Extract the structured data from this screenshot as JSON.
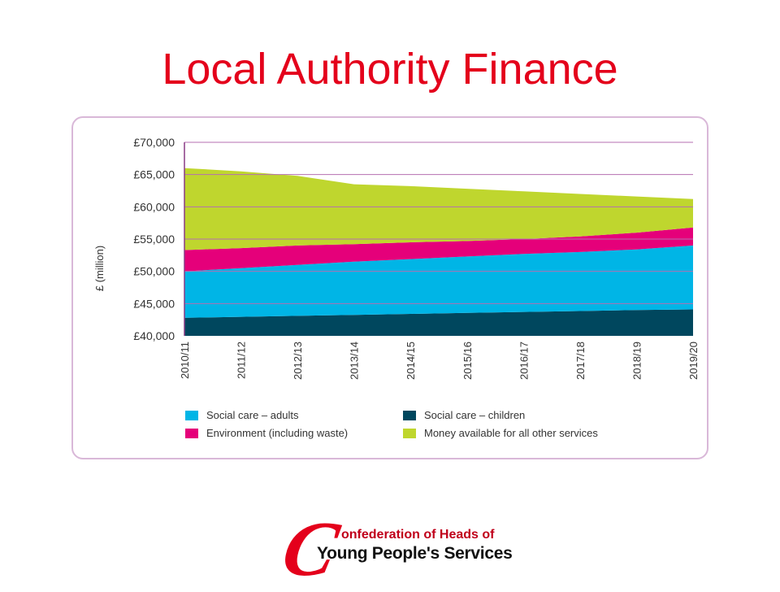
{
  "slide": {
    "title": "Local Authority Finance"
  },
  "logo": {
    "initial": "C",
    "line1": "onfederation of Heads of",
    "line2": "Young People's Services"
  },
  "colors": {
    "title": "#e4001b",
    "social_care_children": "#00475e",
    "social_care_adults": "#00b5e6",
    "environment": "#e5007a",
    "other_services": "#bfd62e",
    "gridline": "#b56fb1",
    "frame_border": "#d9b8d8"
  },
  "chart_data": {
    "type": "area",
    "stacked": true,
    "title": "",
    "xlabel": "",
    "ylabel": "£ (million)",
    "ylim": [
      40000,
      70000
    ],
    "yticks": [
      "£40,000",
      "£45,000",
      "£50,000",
      "£55,000",
      "£60,000",
      "£65,000",
      "£70,000"
    ],
    "ytick_values": [
      40000,
      45000,
      50000,
      55000,
      60000,
      65000,
      70000
    ],
    "categories": [
      "2010/11",
      "2011/12",
      "2012/13",
      "2013/14",
      "2014/15",
      "2015/16",
      "2016/17",
      "2017/18",
      "2018/19",
      "2019/20"
    ],
    "grid": true,
    "legend_position": "bottom",
    "series": [
      {
        "name": "Social care – children",
        "color": "#00475e",
        "cumulative": [
          42800,
          42950,
          43100,
          43250,
          43400,
          43550,
          43700,
          43850,
          44000,
          44100
        ]
      },
      {
        "name": "Social care – adults",
        "color": "#00b5e6",
        "cumulative": [
          50000,
          50500,
          51000,
          51500,
          51900,
          52300,
          52700,
          53000,
          53400,
          54000
        ]
      },
      {
        "name": "Environment (including waste)",
        "color": "#e5007a",
        "cumulative": [
          53300,
          53600,
          54000,
          54200,
          54500,
          54700,
          55000,
          55400,
          56000,
          56800
        ]
      },
      {
        "name": "Money available for all other services",
        "color": "#bfd62e",
        "cumulative": [
          66000,
          65500,
          64800,
          63500,
          63200,
          62800,
          62400,
          62000,
          61600,
          61200
        ]
      }
    ]
  }
}
